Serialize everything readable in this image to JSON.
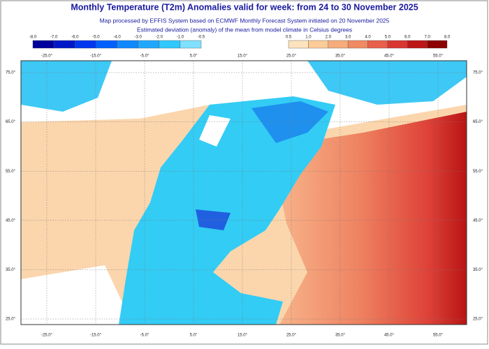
{
  "header": {
    "title": "Monthly Temperature (T2m) Anomalies valid for week: from 24 to 30 November 2025",
    "subtitle": [
      "Map processed by EFFIS System based on ECMWF Monthly Forecast System initiated on 20 November 2025",
      "Estimated deviation (anomaly) of the mean from model climate in Celsius degrees"
    ]
  },
  "legend": {
    "negative": {
      "labels": [
        "-8.0",
        "-7.0",
        "-6.0",
        "-5.0",
        "-4.0",
        "-3.0",
        "-2.0",
        "-1.0",
        "-0.5"
      ],
      "colors": [
        "#00009c",
        "#0018c8",
        "#0038f0",
        "#0060ff",
        "#1088ff",
        "#20a8ff",
        "#30c8ff",
        "#7fe0ff"
      ]
    },
    "positive": {
      "labels": [
        "0.5",
        "1.0",
        "2.0",
        "3.0",
        "4.0",
        "5.0",
        "6.0",
        "7.0",
        "8.0"
      ],
      "colors": [
        "#fde3bd",
        "#fbcb98",
        "#f6ac7c",
        "#f08a62",
        "#e8604a",
        "#d93632",
        "#bc1616",
        "#8c0000"
      ]
    }
  },
  "map": {
    "longitudes": [
      "-25.0°",
      "-15.0°",
      "-5.0°",
      "5.0°",
      "15.0°",
      "25.0°",
      "35.0°",
      "45.0°",
      "55.0°"
    ],
    "latitudes": [
      "75.0°",
      "65.0°",
      "55.0°",
      "45.0°",
      "35.0°",
      "25.0°"
    ]
  }
}
